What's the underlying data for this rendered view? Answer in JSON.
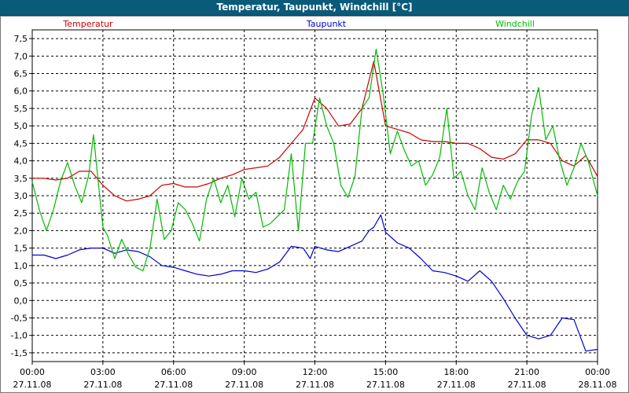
{
  "window": {
    "title": "Temperatur, Taupunkt, Windchill [°C]"
  },
  "chart_data": {
    "type": "line",
    "title": "Temperatur, Taupunkt, Windchill [°C]",
    "xlabel": "",
    "ylabel": "",
    "xlim": [
      0,
      24
    ],
    "ylim": [
      -1.75,
      7.75
    ],
    "grid": true,
    "legend": [
      "Temperatur",
      "Taupunkt",
      "Windchill"
    ],
    "legend_placement": "top",
    "y_ticks": [
      {
        "v": 7.5,
        "label": "7,5"
      },
      {
        "v": 7.0,
        "label": "7,0"
      },
      {
        "v": 6.5,
        "label": "6,5"
      },
      {
        "v": 6.0,
        "label": "6,0"
      },
      {
        "v": 5.5,
        "label": "5,5"
      },
      {
        "v": 5.0,
        "label": "5,0"
      },
      {
        "v": 4.5,
        "label": "4,5"
      },
      {
        "v": 4.0,
        "label": "4,0"
      },
      {
        "v": 3.5,
        "label": "3,5"
      },
      {
        "v": 3.0,
        "label": "3,0"
      },
      {
        "v": 2.5,
        "label": "2,5"
      },
      {
        "v": 2.0,
        "label": "2,0"
      },
      {
        "v": 1.5,
        "label": "1,5"
      },
      {
        "v": 1.0,
        "label": "1,0"
      },
      {
        "v": 0.5,
        "label": "0,5"
      },
      {
        "v": 0.0,
        "label": "0,0"
      },
      {
        "v": -0.5,
        "label": "-0,5"
      },
      {
        "v": -1.0,
        "label": "-1,0"
      },
      {
        "v": -1.5,
        "label": "-1,5"
      }
    ],
    "x_ticks": [
      {
        "v": 0,
        "time": "00:00",
        "date": "27.11.08"
      },
      {
        "v": 3,
        "time": "03:00",
        "date": "27.11.08"
      },
      {
        "v": 6,
        "time": "06:00",
        "date": "27.11.08"
      },
      {
        "v": 9,
        "time": "09:00",
        "date": "27.11.08"
      },
      {
        "v": 12,
        "time": "12:00",
        "date": "27.11.08"
      },
      {
        "v": 15,
        "time": "15:00",
        "date": "27.11.08"
      },
      {
        "v": 18,
        "time": "18:00",
        "date": "27.11.08"
      },
      {
        "v": 21,
        "time": "21:00",
        "date": "27.11.08"
      },
      {
        "v": 24,
        "time": "00:00",
        "date": "28.11.08"
      }
    ],
    "series": [
      {
        "name": "Temperatur",
        "color": "#cc0000",
        "x": [
          0,
          0.5,
          1,
          1.5,
          2,
          2.5,
          3,
          3.5,
          4,
          4.5,
          5,
          5.5,
          6,
          6.5,
          7,
          7.5,
          8,
          8.5,
          9,
          9.5,
          10,
          10.5,
          11,
          11.5,
          12,
          12.5,
          13,
          13.5,
          14,
          14.5,
          15,
          15.5,
          16,
          16.5,
          17,
          17.5,
          18,
          18.5,
          19,
          19.5,
          20,
          20.5,
          21,
          21.5,
          22,
          22.5,
          23,
          23.5,
          24
        ],
        "values": [
          3.5,
          3.5,
          3.45,
          3.5,
          3.7,
          3.7,
          3.3,
          3.0,
          2.85,
          2.9,
          3.0,
          3.3,
          3.35,
          3.25,
          3.25,
          3.35,
          3.5,
          3.6,
          3.75,
          3.8,
          3.85,
          4.1,
          4.5,
          4.9,
          5.8,
          5.5,
          5.0,
          5.05,
          5.5,
          6.85,
          5.0,
          4.9,
          4.8,
          4.6,
          4.55,
          4.55,
          4.5,
          4.5,
          4.35,
          4.1,
          4.05,
          4.2,
          4.6,
          4.6,
          4.5,
          4.0,
          3.85,
          4.15,
          3.55
        ]
      },
      {
        "name": "Taupunkt",
        "color": "#0000cc",
        "x": [
          0,
          0.5,
          1,
          1.5,
          2,
          2.5,
          3,
          3.5,
          4,
          4.5,
          5,
          5.5,
          6,
          6.5,
          7,
          7.5,
          8,
          8.5,
          9,
          9.5,
          10,
          10.5,
          11,
          11.5,
          11.8,
          12,
          12.5,
          13,
          13.5,
          14,
          14.3,
          14.5,
          14.8,
          15,
          15.5,
          16,
          16.5,
          17,
          17.5,
          18,
          18.5,
          19,
          19.5,
          20,
          20.5,
          21,
          21.5,
          22,
          22.5,
          23,
          23.5,
          24
        ],
        "values": [
          1.3,
          1.3,
          1.2,
          1.3,
          1.45,
          1.5,
          1.5,
          1.35,
          1.45,
          1.4,
          1.25,
          1.0,
          0.95,
          0.85,
          0.75,
          0.7,
          0.75,
          0.85,
          0.85,
          0.8,
          0.9,
          1.1,
          1.55,
          1.5,
          1.2,
          1.55,
          1.45,
          1.4,
          1.55,
          1.7,
          2.0,
          2.1,
          2.45,
          1.95,
          1.65,
          1.5,
          1.2,
          0.85,
          0.8,
          0.7,
          0.55,
          0.85,
          0.55,
          0.05,
          -0.5,
          -1.0,
          -1.1,
          -1.0,
          -0.5,
          -0.55,
          -1.45,
          -1.4
        ]
      },
      {
        "name": "Windchill",
        "color": "#00bb00",
        "x": [
          0,
          0.3,
          0.6,
          0.9,
          1.2,
          1.5,
          1.8,
          2.1,
          2.4,
          2.6,
          2.8,
          3.0,
          3.2,
          3.5,
          3.8,
          4.1,
          4.4,
          4.7,
          5.0,
          5.3,
          5.6,
          5.9,
          6.2,
          6.5,
          6.8,
          7.1,
          7.4,
          7.7,
          8.0,
          8.3,
          8.6,
          8.9,
          9.2,
          9.5,
          9.8,
          10.1,
          10.4,
          10.7,
          11.0,
          11.3,
          11.6,
          11.9,
          12.2,
          12.5,
          12.8,
          13.1,
          13.4,
          13.7,
          14.0,
          14.3,
          14.6,
          14.9,
          15.2,
          15.5,
          15.8,
          16.1,
          16.4,
          16.7,
          17.0,
          17.3,
          17.6,
          17.9,
          18.2,
          18.5,
          18.8,
          19.1,
          19.4,
          19.7,
          20.0,
          20.3,
          20.6,
          20.9,
          21.2,
          21.5,
          21.8,
          22.1,
          22.4,
          22.7,
          23.0,
          23.3,
          23.6,
          24.0
        ],
        "values": [
          3.4,
          2.6,
          2.0,
          2.6,
          3.4,
          3.95,
          3.3,
          2.8,
          3.6,
          4.75,
          3.4,
          2.1,
          1.85,
          1.2,
          1.75,
          1.3,
          0.95,
          0.85,
          1.5,
          2.9,
          1.75,
          2.0,
          2.8,
          2.6,
          2.2,
          1.7,
          2.9,
          3.5,
          2.8,
          3.3,
          2.4,
          3.5,
          2.9,
          3.1,
          2.1,
          2.2,
          2.4,
          2.6,
          4.2,
          2.0,
          4.5,
          4.5,
          5.8,
          5.0,
          4.5,
          3.3,
          2.95,
          3.55,
          5.5,
          5.8,
          7.2,
          5.9,
          4.2,
          4.85,
          4.3,
          3.85,
          4.0,
          3.3,
          3.6,
          4.1,
          5.5,
          3.5,
          3.7,
          3.0,
          2.6,
          3.8,
          3.1,
          2.6,
          3.3,
          2.9,
          3.4,
          3.7,
          5.3,
          6.1,
          4.6,
          5.0,
          4.0,
          3.3,
          3.8,
          4.5,
          4.0,
          3.0
        ]
      }
    ]
  }
}
